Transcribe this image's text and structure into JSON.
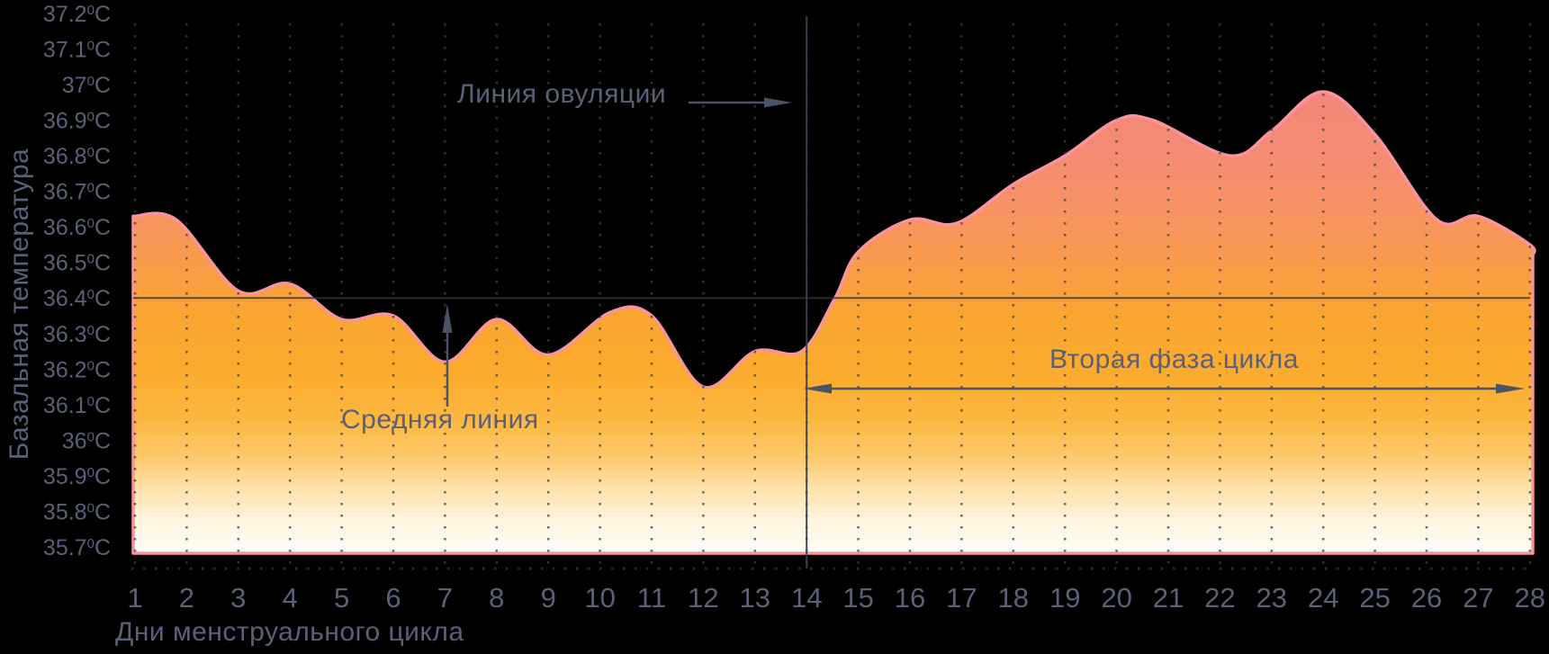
{
  "y_axis": {
    "title": "Базальная температура",
    "unit": "C",
    "superscript": "0",
    "ticks": [
      "37.2",
      "37.1",
      "37",
      "36.9",
      "36.8",
      "36.7",
      "36.6",
      "36.5",
      "36.4",
      "36.3",
      "36.2",
      "36.1",
      "36",
      "35.9",
      "35.8",
      "35.7"
    ]
  },
  "x_axis": {
    "title": "Дни менструального цикла",
    "day_labels": [
      "1",
      "2",
      "3",
      "4",
      "5",
      "6",
      "7",
      "8",
      "9",
      "10",
      "11",
      "12",
      "13",
      "14",
      "15",
      "16",
      "17",
      "18",
      "19",
      "20",
      "21",
      "22",
      "23",
      "24",
      "25",
      "26",
      "27",
      "28"
    ]
  },
  "annotations": {
    "ovulation_label": "Линия овуляции",
    "middle_label": "Средняя линия",
    "phase2_label": "Вторая фаза цикла"
  },
  "colors": {
    "background": "#000000",
    "text": "#5a6078",
    "curve_stroke": "#f8949f",
    "gridline": "#3f3f3f",
    "middle_line": "#333333",
    "ovulation_line": "#3b4052",
    "arrow": "#4d5366",
    "fill_top": "#f4857b",
    "fill_orange": "#fbab2d",
    "fill_bottom": "#fffefb"
  },
  "chart_data": {
    "type": "area",
    "title": "",
    "xlabel": "Дни менструального цикла",
    "ylabel": "Базальная температура",
    "x": [
      1,
      2,
      3,
      4,
      5,
      6,
      7,
      8,
      9,
      10,
      11,
      12,
      13,
      14,
      15,
      16,
      17,
      18,
      19,
      20,
      21,
      22,
      23,
      24,
      25,
      26,
      27,
      28
    ],
    "series": [
      {
        "name": "Базальная температура (°C)",
        "values": [
          36.63,
          36.6,
          36.42,
          36.44,
          36.34,
          36.35,
          36.22,
          36.34,
          36.24,
          36.36,
          36.35,
          36.15,
          36.25,
          36.25,
          36.54,
          36.62,
          36.61,
          36.72,
          36.8,
          36.9,
          36.89,
          36.81,
          36.87,
          36.98,
          36.86,
          36.62,
          36.63,
          36.52
        ]
      }
    ],
    "ylim": [
      35.7,
      37.2
    ],
    "y_tick_step": 0.1,
    "grid": "vertical-dotted",
    "legend": "none",
    "reference_lines": {
      "middle_line_temp": 36.4,
      "ovulation_day": 14
    },
    "smooth_points": [
      [
        0.97,
        36.63
      ],
      [
        1.8,
        36.62
      ],
      [
        3,
        36.42
      ],
      [
        4,
        36.44
      ],
      [
        5,
        36.34
      ],
      [
        6,
        36.35
      ],
      [
        7,
        36.22
      ],
      [
        8,
        36.34
      ],
      [
        9,
        36.24
      ],
      [
        10.2,
        36.36
      ],
      [
        11,
        36.35
      ],
      [
        12,
        36.15
      ],
      [
        13,
        36.25
      ],
      [
        13.9,
        36.25
      ],
      [
        14.55,
        36.4
      ],
      [
        15,
        36.53
      ],
      [
        16,
        36.62
      ],
      [
        16.9,
        36.61
      ],
      [
        18,
        36.72
      ],
      [
        19,
        36.8
      ],
      [
        20,
        36.9
      ],
      [
        20.7,
        36.9
      ],
      [
        22.2,
        36.8
      ],
      [
        23,
        36.87
      ],
      [
        24,
        36.98
      ],
      [
        25,
        36.86
      ],
      [
        26.2,
        36.62
      ],
      [
        27,
        36.63
      ],
      [
        28,
        36.55
      ],
      [
        28.05,
        36.52
      ]
    ],
    "gradient_stops": [
      [
        0.0,
        "#f4857b"
      ],
      [
        0.18,
        "#f58c72"
      ],
      [
        0.3,
        "#f79460"
      ],
      [
        0.42,
        "#f99e43"
      ],
      [
        0.5,
        "#faa532"
      ],
      [
        0.62,
        "#fbab2d"
      ],
      [
        0.72,
        "#fcb740"
      ],
      [
        0.8,
        "#fdca6e"
      ],
      [
        0.87,
        "#fee3ae"
      ],
      [
        0.93,
        "#fff4dd"
      ],
      [
        1.0,
        "#fffefb"
      ]
    ]
  }
}
